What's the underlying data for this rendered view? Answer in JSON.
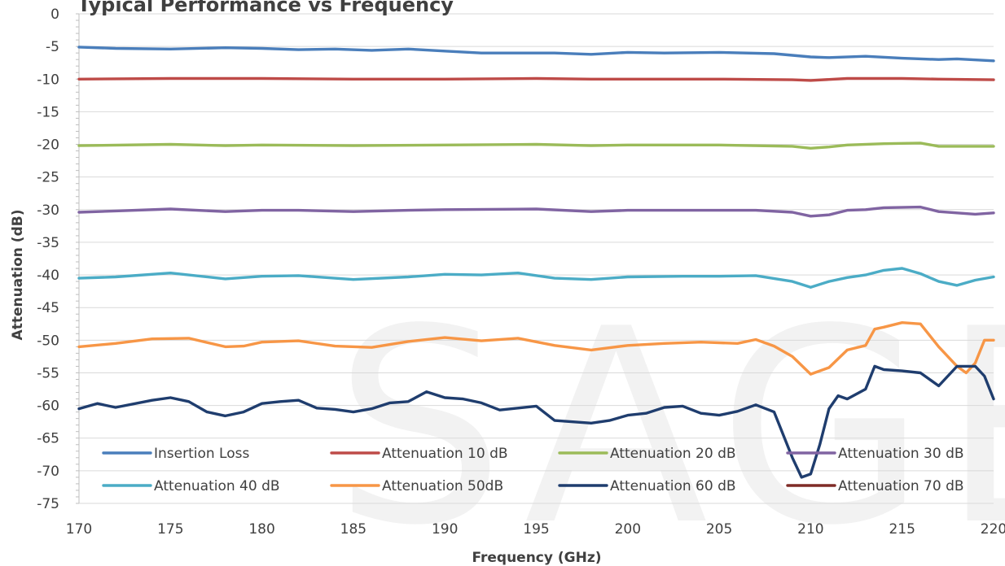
{
  "chart_data": {
    "type": "line",
    "title": "Typical Performance vs Frequency",
    "xlabel": "Frequency (GHz)",
    "ylabel": "Attenuation (dB)",
    "xlim": [
      170,
      220
    ],
    "ylim": [
      -75,
      0
    ],
    "x_ticks": [
      "170",
      "175",
      "180",
      "185",
      "190",
      "195",
      "200",
      "205",
      "210",
      "215",
      "220"
    ],
    "y_ticks": [
      "0",
      "-5",
      "-10",
      "-15",
      "-20",
      "-25",
      "-30",
      "-35",
      "-40",
      "-45",
      "-50",
      "-55",
      "-60",
      "-65",
      "-70",
      "-75"
    ],
    "grid": true,
    "legend_position": "bottom",
    "watermark": "SAGE",
    "series": [
      {
        "name": "Insertion Loss",
        "color": "#4a7ebb",
        "points": [
          [
            170,
            -5.1
          ],
          [
            172,
            -5.3
          ],
          [
            175,
            -5.4
          ],
          [
            178,
            -5.2
          ],
          [
            180,
            -5.3
          ],
          [
            182,
            -5.5
          ],
          [
            184,
            -5.4
          ],
          [
            186,
            -5.6
          ],
          [
            188,
            -5.4
          ],
          [
            190,
            -5.7
          ],
          [
            192,
            -6.0
          ],
          [
            194,
            -6.0
          ],
          [
            196,
            -6.0
          ],
          [
            198,
            -6.2
          ],
          [
            200,
            -5.9
          ],
          [
            202,
            -6.0
          ],
          [
            205,
            -5.9
          ],
          [
            208,
            -6.1
          ],
          [
            210,
            -6.6
          ],
          [
            211,
            -6.7
          ],
          [
            213,
            -6.5
          ],
          [
            215,
            -6.8
          ],
          [
            217,
            -7.0
          ],
          [
            218,
            -6.9
          ],
          [
            220,
            -7.2
          ]
        ]
      },
      {
        "name": "Attenuation 10 dB",
        "color": "#be4b48",
        "points": [
          [
            170,
            -10.0
          ],
          [
            175,
            -9.9
          ],
          [
            180,
            -9.9
          ],
          [
            185,
            -10.0
          ],
          [
            190,
            -10.0
          ],
          [
            195,
            -9.9
          ],
          [
            198,
            -10.0
          ],
          [
            200,
            -10.0
          ],
          [
            205,
            -10.0
          ],
          [
            209,
            -10.1
          ],
          [
            210,
            -10.2
          ],
          [
            212,
            -9.9
          ],
          [
            215,
            -9.9
          ],
          [
            217,
            -10.0
          ],
          [
            220,
            -10.1
          ]
        ]
      },
      {
        "name": "Attenuation 20 dB",
        "color": "#9bbb59",
        "points": [
          [
            170,
            -20.2
          ],
          [
            175,
            -20.0
          ],
          [
            178,
            -20.2
          ],
          [
            180,
            -20.1
          ],
          [
            185,
            -20.2
          ],
          [
            190,
            -20.1
          ],
          [
            195,
            -20.0
          ],
          [
            198,
            -20.2
          ],
          [
            200,
            -20.1
          ],
          [
            205,
            -20.1
          ],
          [
            209,
            -20.3
          ],
          [
            210,
            -20.6
          ],
          [
            211,
            -20.4
          ],
          [
            212,
            -20.1
          ],
          [
            214,
            -19.9
          ],
          [
            216,
            -19.8
          ],
          [
            217,
            -20.3
          ],
          [
            220,
            -20.3
          ]
        ]
      },
      {
        "name": "Attenuation 30 dB",
        "color": "#8064a2",
        "points": [
          [
            170,
            -30.4
          ],
          [
            172,
            -30.2
          ],
          [
            175,
            -29.9
          ],
          [
            178,
            -30.3
          ],
          [
            180,
            -30.1
          ],
          [
            182,
            -30.1
          ],
          [
            185,
            -30.3
          ],
          [
            188,
            -30.1
          ],
          [
            190,
            -30.0
          ],
          [
            195,
            -29.9
          ],
          [
            198,
            -30.3
          ],
          [
            200,
            -30.1
          ],
          [
            205,
            -30.1
          ],
          [
            207,
            -30.1
          ],
          [
            209,
            -30.4
          ],
          [
            210,
            -31.0
          ],
          [
            211,
            -30.8
          ],
          [
            212,
            -30.1
          ],
          [
            213,
            -30.0
          ],
          [
            214,
            -29.7
          ],
          [
            216,
            -29.6
          ],
          [
            217,
            -30.3
          ],
          [
            219,
            -30.7
          ],
          [
            220,
            -30.5
          ]
        ]
      },
      {
        "name": "Attenuation 40 dB",
        "color": "#4bacc6",
        "points": [
          [
            170,
            -40.5
          ],
          [
            172,
            -40.3
          ],
          [
            175,
            -39.7
          ],
          [
            178,
            -40.6
          ],
          [
            180,
            -40.2
          ],
          [
            182,
            -40.1
          ],
          [
            185,
            -40.7
          ],
          [
            188,
            -40.3
          ],
          [
            190,
            -39.9
          ],
          [
            192,
            -40.0
          ],
          [
            194,
            -39.7
          ],
          [
            196,
            -40.5
          ],
          [
            198,
            -40.7
          ],
          [
            200,
            -40.3
          ],
          [
            203,
            -40.2
          ],
          [
            205,
            -40.2
          ],
          [
            207,
            -40.1
          ],
          [
            209,
            -41.0
          ],
          [
            210,
            -41.9
          ],
          [
            211,
            -41.0
          ],
          [
            212,
            -40.4
          ],
          [
            213,
            -40.0
          ],
          [
            214,
            -39.3
          ],
          [
            215,
            -39.0
          ],
          [
            216,
            -39.8
          ],
          [
            217,
            -41.0
          ],
          [
            218,
            -41.6
          ],
          [
            219,
            -40.8
          ],
          [
            220,
            -40.3
          ]
        ]
      },
      {
        "name": "Attenuation 50dB",
        "color": "#f79646",
        "points": [
          [
            170,
            -51.0
          ],
          [
            172,
            -50.5
          ],
          [
            174,
            -49.8
          ],
          [
            176,
            -49.7
          ],
          [
            178,
            -51.0
          ],
          [
            179,
            -50.9
          ],
          [
            180,
            -50.3
          ],
          [
            182,
            -50.1
          ],
          [
            184,
            -50.9
          ],
          [
            186,
            -51.1
          ],
          [
            188,
            -50.2
          ],
          [
            190,
            -49.6
          ],
          [
            192,
            -50.1
          ],
          [
            194,
            -49.7
          ],
          [
            196,
            -50.8
          ],
          [
            198,
            -51.5
          ],
          [
            200,
            -50.8
          ],
          [
            202,
            -50.5
          ],
          [
            204,
            -50.3
          ],
          [
            206,
            -50.5
          ],
          [
            207,
            -49.9
          ],
          [
            208,
            -50.9
          ],
          [
            209,
            -52.5
          ],
          [
            210,
            -55.2
          ],
          [
            211,
            -54.2
          ],
          [
            212,
            -51.5
          ],
          [
            213,
            -50.8
          ],
          [
            213.5,
            -48.3
          ],
          [
            214,
            -48.0
          ],
          [
            215,
            -47.3
          ],
          [
            216,
            -47.5
          ],
          [
            217,
            -51.0
          ],
          [
            218,
            -54.0
          ],
          [
            218.5,
            -55.0
          ],
          [
            219,
            -53.5
          ],
          [
            219.5,
            -50.0
          ],
          [
            220,
            -50.0
          ]
        ]
      },
      {
        "name": "Attenuation 60 dB",
        "color": "#1f3d6e",
        "points": [
          [
            170,
            -60.5
          ],
          [
            171,
            -59.7
          ],
          [
            172,
            -60.3
          ],
          [
            174,
            -59.2
          ],
          [
            175,
            -58.8
          ],
          [
            176,
            -59.4
          ],
          [
            177,
            -61.0
          ],
          [
            178,
            -61.6
          ],
          [
            179,
            -61.0
          ],
          [
            180,
            -59.7
          ],
          [
            181,
            -59.4
          ],
          [
            182,
            -59.2
          ],
          [
            183,
            -60.4
          ],
          [
            184,
            -60.6
          ],
          [
            185,
            -61.0
          ],
          [
            186,
            -60.5
          ],
          [
            187,
            -59.6
          ],
          [
            188,
            -59.4
          ],
          [
            189,
            -57.9
          ],
          [
            190,
            -58.8
          ],
          [
            191,
            -59.0
          ],
          [
            192,
            -59.6
          ],
          [
            193,
            -60.7
          ],
          [
            194,
            -60.4
          ],
          [
            195,
            -60.1
          ],
          [
            196,
            -62.3
          ],
          [
            197,
            -62.5
          ],
          [
            198,
            -62.7
          ],
          [
            199,
            -62.3
          ],
          [
            200,
            -61.5
          ],
          [
            201,
            -61.2
          ],
          [
            202,
            -60.3
          ],
          [
            203,
            -60.1
          ],
          [
            204,
            -61.2
          ],
          [
            205,
            -61.5
          ],
          [
            206,
            -60.9
          ],
          [
            207,
            -59.9
          ],
          [
            208,
            -61.0
          ],
          [
            209,
            -68.0
          ],
          [
            209.5,
            -71.0
          ],
          [
            210,
            -70.5
          ],
          [
            210.5,
            -66.0
          ],
          [
            211,
            -60.5
          ],
          [
            211.5,
            -58.5
          ],
          [
            212,
            -59.0
          ],
          [
            213,
            -57.5
          ],
          [
            213.5,
            -54.0
          ],
          [
            214,
            -54.5
          ],
          [
            215,
            -54.7
          ],
          [
            216,
            -55.0
          ],
          [
            217,
            -57.0
          ],
          [
            218,
            -54.0
          ],
          [
            219,
            -54.0
          ],
          [
            219.5,
            -55.5
          ],
          [
            220,
            -59.0
          ]
        ]
      },
      {
        "name": "Attenuation 70 dB",
        "color": "#7f2b27",
        "points": []
      }
    ]
  }
}
